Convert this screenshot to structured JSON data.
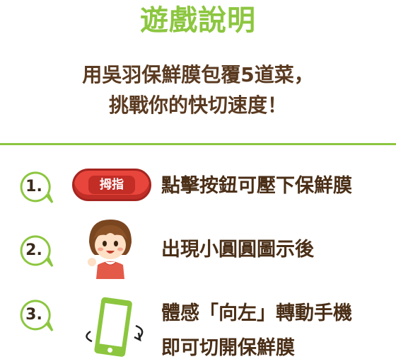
{
  "header": {
    "title": "遊戲說明",
    "subtitle_line1": "用吳羽保鮮膜包覆5道菜，",
    "subtitle_line2": "挑戰你的快切速度！"
  },
  "steps": [
    {
      "number": "1.",
      "icon": "thumb-button-icon",
      "button_label": "拇指",
      "text": "點擊按鈕可壓下保鮮膜"
    },
    {
      "number": "2.",
      "icon": "girl-character-icon",
      "text": "出現小圓圓圖示後"
    },
    {
      "number": "3.",
      "icon": "phone-rotate-icon",
      "text_line1": "體感「向左」轉動手機",
      "text_line2": "即可切開保鮮膜"
    }
  ],
  "colors": {
    "accent_green": "#8cc63f",
    "text_brown": "#4a2e16",
    "button_red": "#e8453c"
  }
}
